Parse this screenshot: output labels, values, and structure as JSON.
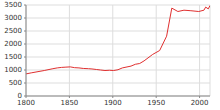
{
  "chart_data": {
    "type": "line",
    "x": [
      1800,
      1806,
      1821,
      1831,
      1836,
      1841,
      1846,
      1851,
      1856,
      1861,
      1866,
      1872,
      1876,
      1881,
      1886,
      1891,
      1896,
      1901,
      1906,
      1911,
      1921,
      1926,
      1931,
      1936,
      1946,
      1954,
      1962,
      1968,
      1975,
      1982,
      1990,
      1999,
      2005,
      2007,
      2010,
      2012
    ],
    "values": [
      850,
      890,
      980,
      1050,
      1080,
      1100,
      1110,
      1120,
      1090,
      1080,
      1060,
      1050,
      1040,
      1020,
      1000,
      980,
      990,
      980,
      1010,
      1080,
      1150,
      1220,
      1250,
      1350,
      1600,
      1750,
      2300,
      3380,
      3250,
      3300,
      3280,
      3250,
      3300,
      3420,
      3350,
      3480
    ],
    "color": "#e03030",
    "xlim": [
      1800,
      2012
    ],
    "xticks": [
      1800,
      1850,
      1900,
      1950,
      2000
    ],
    "ylim": [
      0,
      3500
    ],
    "yticks": [
      0,
      500,
      1000,
      1500,
      2000,
      2500,
      3000,
      3500
    ],
    "grid": true
  }
}
